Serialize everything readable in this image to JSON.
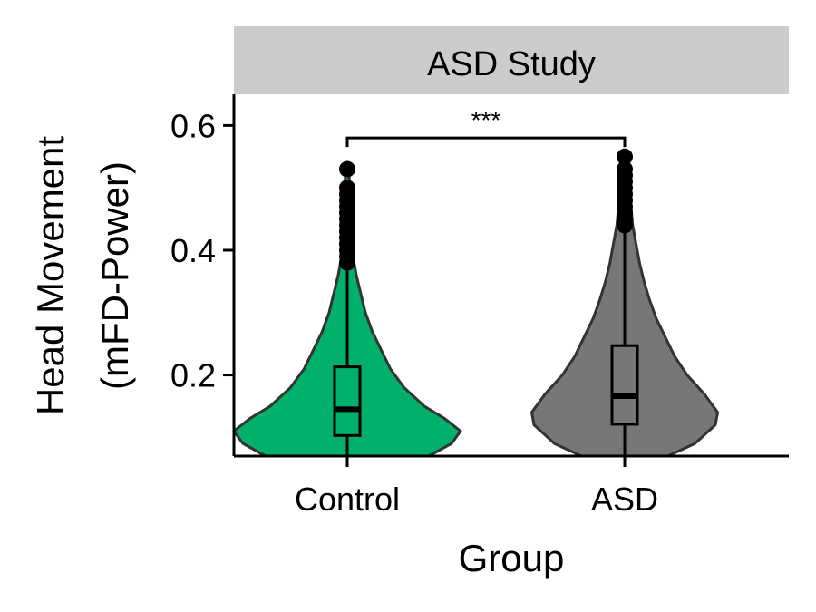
{
  "chart_data": {
    "type": "violin",
    "facet": "ASD Study",
    "xlabel": "Group",
    "ylabel_lines": [
      "Head Movement",
      "(mFD-Power)"
    ],
    "categories": [
      "Control",
      "ASD"
    ],
    "ylim": [
      0.07,
      0.65
    ],
    "yticks": [
      0.2,
      0.4,
      0.6
    ],
    "ytick_labels": [
      "0.2",
      "0.4",
      "0.6"
    ],
    "grid": false,
    "colors": {
      "Control": "#00b06b",
      "ASD": "#777777",
      "strip": "#cccccc"
    },
    "groups": [
      {
        "name": "Control",
        "box": {
          "q1": 0.103,
          "median": 0.145,
          "q3": 0.213,
          "whisker_low": 0.07,
          "whisker_high": 0.378
        },
        "outliers": [
          0.38,
          0.39,
          0.4,
          0.41,
          0.42,
          0.43,
          0.44,
          0.45,
          0.46,
          0.47,
          0.48,
          0.49,
          0.5,
          0.53
        ],
        "density": [
          [
            0.07,
            0.72
          ],
          [
            0.09,
            0.92
          ],
          [
            0.11,
            1.0
          ],
          [
            0.13,
            0.86
          ],
          [
            0.15,
            0.68
          ],
          [
            0.18,
            0.5
          ],
          [
            0.21,
            0.38
          ],
          [
            0.24,
            0.3
          ],
          [
            0.27,
            0.22
          ],
          [
            0.3,
            0.16
          ],
          [
            0.33,
            0.12
          ],
          [
            0.36,
            0.08
          ],
          [
            0.39,
            0.05
          ],
          [
            0.43,
            0.035
          ],
          [
            0.47,
            0.025
          ],
          [
            0.5,
            0.02
          ],
          [
            0.53,
            0.015
          ]
        ]
      },
      {
        "name": "ASD",
        "box": {
          "q1": 0.121,
          "median": 0.166,
          "q3": 0.247,
          "whisker_low": 0.07,
          "whisker_high": 0.43
        },
        "outliers": [
          0.44,
          0.45,
          0.46,
          0.47,
          0.48,
          0.49,
          0.5,
          0.51,
          0.52,
          0.53,
          0.55
        ],
        "density": [
          [
            0.07,
            0.38
          ],
          [
            0.09,
            0.62
          ],
          [
            0.12,
            0.8
          ],
          [
            0.14,
            0.82
          ],
          [
            0.17,
            0.7
          ],
          [
            0.2,
            0.55
          ],
          [
            0.23,
            0.44
          ],
          [
            0.26,
            0.36
          ],
          [
            0.29,
            0.28
          ],
          [
            0.32,
            0.22
          ],
          [
            0.35,
            0.17
          ],
          [
            0.38,
            0.13
          ],
          [
            0.41,
            0.1
          ],
          [
            0.44,
            0.07
          ],
          [
            0.48,
            0.05
          ],
          [
            0.52,
            0.035
          ],
          [
            0.555,
            0.02
          ]
        ]
      }
    ],
    "significance": {
      "from": "Control",
      "to": "ASD",
      "y": 0.58,
      "label": "***"
    }
  }
}
